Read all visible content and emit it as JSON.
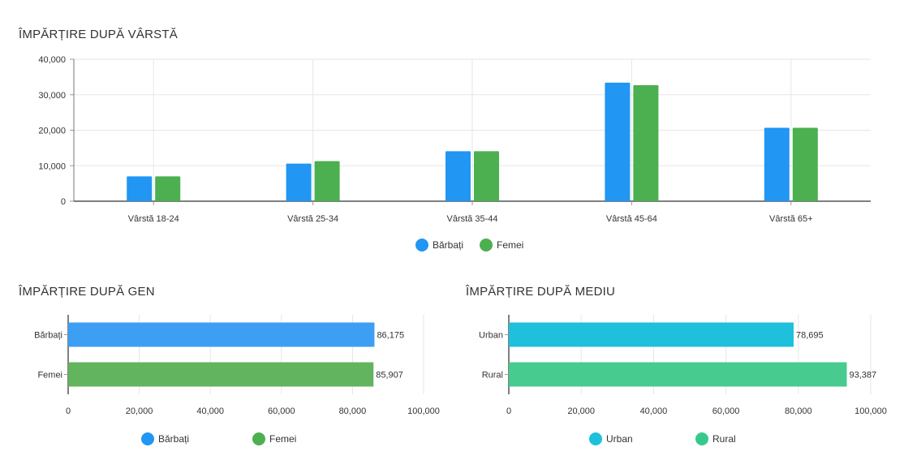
{
  "chart_data": [
    {
      "type": "bar",
      "title": "ÎMPĂRȚIRE DUPĂ VÂRSTĂ",
      "categories": [
        "Vârstă 18-24",
        "Vârstă 25-34",
        "Vârstă 35-44",
        "Vârstă 45-64",
        "Vârstă 65+"
      ],
      "series": [
        {
          "name": "Bărbați",
          "values": [
            7000,
            10600,
            14100,
            33400,
            20700
          ],
          "color": "#2196f3"
        },
        {
          "name": "Femei",
          "values": [
            7000,
            11300,
            14100,
            32700,
            20700
          ],
          "color": "#4caf50"
        }
      ],
      "ylim": [
        0,
        40000
      ],
      "yticks": [
        "0",
        "10,000",
        "20,000",
        "30,000",
        "40,000"
      ],
      "grid": true,
      "legend": "bottom-center"
    },
    {
      "type": "bar",
      "orientation": "horizontal",
      "title": "ÎMPĂRȚIRE DUPĂ GEN",
      "categories": [
        "Bărbați",
        "Femei"
      ],
      "values": [
        86175,
        85907
      ],
      "value_labels": [
        "86,175",
        "85,907"
      ],
      "colors": [
        "#3d9ff3",
        "#63b45e"
      ],
      "xlim": [
        0,
        100000
      ],
      "xticks": [
        "0",
        "20,000",
        "40,000",
        "60,000",
        "80,000",
        "100,000"
      ],
      "legend_items": [
        {
          "name": "Bărbați",
          "color": "#2196f3"
        },
        {
          "name": "Femei",
          "color": "#4caf50"
        }
      ],
      "legend": "bottom-center"
    },
    {
      "type": "bar",
      "orientation": "horizontal",
      "title": "ÎMPĂRȚIRE DUPĂ MEDIU",
      "categories": [
        "Urban",
        "Rural"
      ],
      "values": [
        78695,
        93387
      ],
      "value_labels": [
        "78,695",
        "93,387"
      ],
      "colors": [
        "#1ec0dc",
        "#47cb8e"
      ],
      "xlim": [
        0,
        100000
      ],
      "xticks": [
        "0",
        "20,000",
        "40,000",
        "60,000",
        "80,000",
        "100,000"
      ],
      "legend_items": [
        {
          "name": "Urban",
          "color": "#1ec0dc"
        },
        {
          "name": "Rural",
          "color": "#37c98b"
        }
      ],
      "legend": "bottom-center"
    }
  ]
}
